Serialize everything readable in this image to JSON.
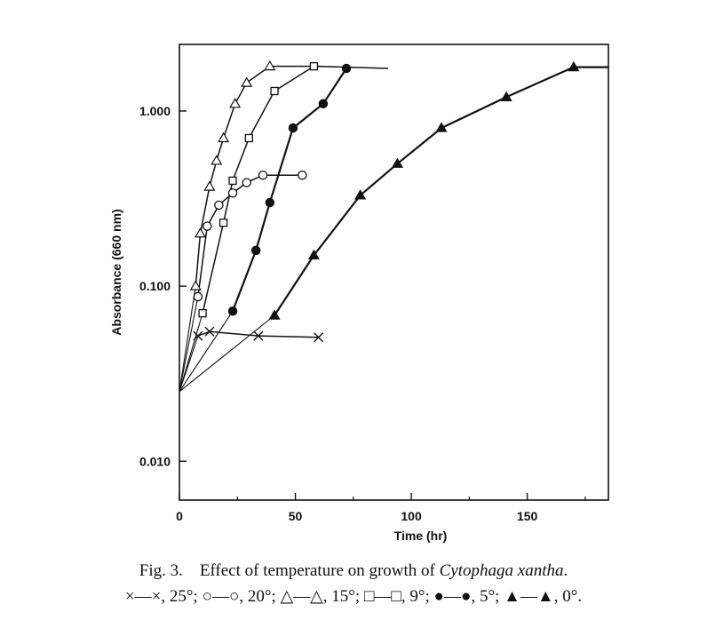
{
  "chart_data": {
    "type": "line",
    "title": "",
    "xlabel": "Time (hr)",
    "ylabel": "Absorbance (660 nm)",
    "xlim": [
      0,
      185
    ],
    "ylim": [
      0.006,
      2.4
    ],
    "yscale": "log",
    "grid": false,
    "x_ticks": [
      0,
      50,
      100,
      150
    ],
    "x_tick_labels": [
      "0",
      "50",
      "100",
      "150"
    ],
    "y_ticks": [
      0.01,
      0.1,
      1.0
    ],
    "y_tick_labels": [
      "0.010",
      "0.100",
      "1.000"
    ],
    "origin_y": 0.025,
    "series": [
      {
        "name": "25°",
        "marker": "cross",
        "x": [
          8,
          13,
          34,
          60
        ],
        "y": [
          0.052,
          0.055,
          0.052,
          0.051
        ]
      },
      {
        "name": "20°",
        "marker": "circle-open",
        "x": [
          8,
          12,
          17,
          23,
          29,
          36,
          53
        ],
        "y": [
          0.087,
          0.22,
          0.29,
          0.34,
          0.39,
          0.43,
          0.43
        ]
      },
      {
        "name": "15°",
        "marker": "triangle-open",
        "x": [
          7,
          9,
          13,
          16,
          19,
          24,
          29,
          39,
          61
        ],
        "y": [
          0.1,
          0.2,
          0.37,
          0.52,
          0.7,
          1.1,
          1.45,
          1.8,
          1.8
        ]
      },
      {
        "name": "9°",
        "marker": "square-open",
        "x": [
          10,
          19,
          23,
          30,
          41,
          58,
          90
        ],
        "y": [
          0.07,
          0.23,
          0.4,
          0.7,
          1.3,
          1.8,
          1.75
        ]
      },
      {
        "name": "5°",
        "marker": "circle-filled",
        "x": [
          23,
          33,
          39,
          49,
          62,
          72
        ],
        "y": [
          0.072,
          0.16,
          0.3,
          0.8,
          1.1,
          1.75
        ]
      },
      {
        "name": "0°",
        "marker": "triangle-filled",
        "x": [
          41,
          58,
          78,
          94,
          113,
          141,
          170,
          185
        ],
        "y": [
          0.068,
          0.15,
          0.33,
          0.5,
          0.8,
          1.2,
          1.78,
          1.78
        ]
      }
    ]
  },
  "caption": {
    "line1_prefix": "Fig. 3. Effect of temperature on growth of ",
    "line1_species": "Cytophaga xantha",
    "line1_suffix": ".",
    "legend_items": [
      {
        "symbol": "×—×",
        "label": ", 25°; "
      },
      {
        "symbol": "○—○",
        "label": ", 20°; "
      },
      {
        "symbol": "△—△",
        "label": ", 15°; "
      },
      {
        "symbol": "□—□",
        "label": ", 9°; "
      },
      {
        "symbol": "●—●",
        "label": ", 5°; "
      },
      {
        "symbol": "▲—▲",
        "label": ", 0°."
      }
    ]
  }
}
